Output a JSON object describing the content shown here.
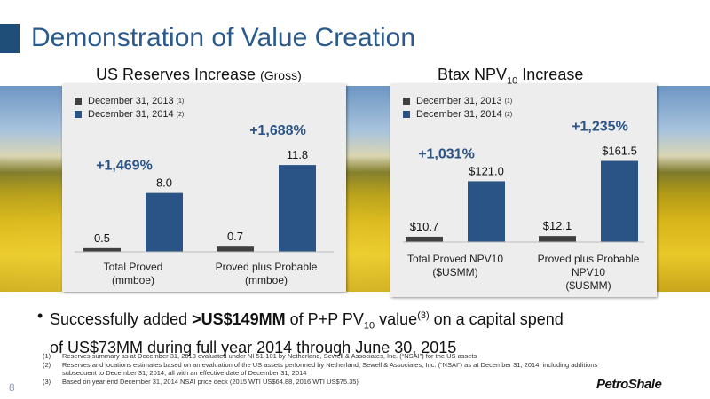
{
  "slide": {
    "title": "Demonstration of Value Creation",
    "page_number": "8",
    "logo_text": "PetroShale"
  },
  "colors": {
    "primary": "#1f4e79",
    "dark_bar": "#404040",
    "bar_2014": "#2b5486",
    "growth_text": "#2b5486",
    "panel_bg": "#ededed"
  },
  "panels": {
    "reserves": {
      "title_main": "US Reserves Increase",
      "title_suffix": "(Gross)"
    },
    "npv": {
      "title_main": "Btax NPV",
      "title_sub": "10",
      "title_end": "Increase"
    }
  },
  "legend": {
    "series_2013": "December 31, 2013",
    "series_2013_note": "(1)",
    "series_2014": "December 31, 2014",
    "series_2014_note": "(2)"
  },
  "chart_data": [
    {
      "type": "bar",
      "categories": [
        "Total Proved (mmboe)",
        "Proved plus Probable (mmboe)"
      ],
      "category_lines": [
        [
          "Total Proved",
          "(mmboe)"
        ],
        [
          "Proved plus Probable",
          "(mmboe)"
        ]
      ],
      "series": [
        {
          "name": "December 31, 2013",
          "values": [
            0.5,
            0.7
          ],
          "labels": [
            "0.5",
            "0.7"
          ]
        },
        {
          "name": "December 31, 2014",
          "values": [
            8.0,
            11.8
          ],
          "labels": [
            "8.0",
            "11.8"
          ]
        }
      ],
      "growth_labels": [
        "+1,469%",
        "+1,688%"
      ],
      "ylim": [
        0,
        13.5
      ],
      "legend_position": "top-left",
      "grid": false
    },
    {
      "type": "bar",
      "categories": [
        "Total Proved NPV10 ($USMM)",
        "Proved plus Probable NPV10 ($USMM)"
      ],
      "category_lines": [
        [
          "Total Proved NPV10",
          "($USMM)"
        ],
        [
          "Proved plus Probable",
          "NPV10",
          "($USMM)"
        ]
      ],
      "series": [
        {
          "name": "December 31, 2013",
          "values": [
            10.7,
            12.1
          ],
          "labels": [
            "$10.7",
            "$12.1"
          ]
        },
        {
          "name": "December 31, 2014",
          "values": [
            121.0,
            161.5
          ],
          "labels": [
            "$121.0",
            "$161.5"
          ]
        }
      ],
      "growth_labels": [
        "+1,031%",
        "+1,235%"
      ],
      "ylim": [
        0,
        180
      ],
      "legend_position": "top-left",
      "grid": false
    }
  ],
  "bullet": {
    "dot": "•",
    "part1": "Successfully added ",
    "bold": ">US$149MM",
    "part2": " of P+P PV",
    "sub": "10",
    "part3": " value",
    "sup": "(3)",
    "part4": " on a capital spend",
    "line2": "of US$73MM during full year 2014 through June 30, 2015"
  },
  "footnotes": [
    {
      "num": "(1)",
      "text": "Reserves summary as at December 31, 2013 evaluated under NI 51-101 by Netherland, Sewell & Associates, Inc. (“NSAI”) for the US assets"
    },
    {
      "num": "(2)",
      "text": "Reserves and locations estimates based on an evaluation of the US assets performed by Netherland, Sewell & Associates, Inc. (“NSAI”) as at December 31, 2014, including additions subsequent to December 31, 2014, all with an effective date of December 31, 2014"
    },
    {
      "num": "(3)",
      "text": "Based on year end December 31, 2014 NSAI price deck (2015 WTI US$64.88, 2016 WTI US$75.35)"
    }
  ]
}
